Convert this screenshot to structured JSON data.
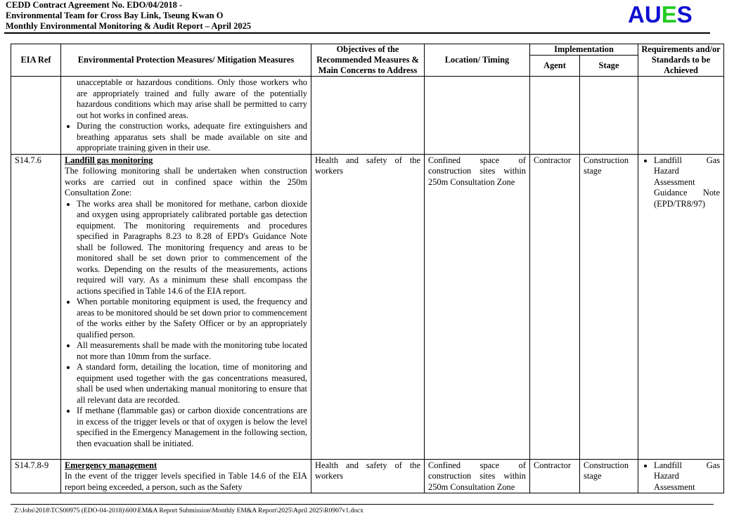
{
  "header": {
    "line1": "CEDD Contract Agreement No. EDO/04/2018 -",
    "line2": "Environmental Team for Cross Bay Link, Tseung Kwan O",
    "line3": "Monthly Environmental Monitoring & Audit Report – April 2025",
    "logo": {
      "letters": [
        "A",
        "U",
        "E",
        "S"
      ],
      "colors": [
        "#1010d0",
        "#1010d0",
        "#22cc22",
        "#1010d0"
      ]
    }
  },
  "table": {
    "columns": {
      "eia_ref": "EIA Ref",
      "measures": "Environmental Protection Measures/ Mitigation Measures",
      "objectives": "Objectives of the Recommended Measures & Main Concerns to Address",
      "location": "Location/ Timing",
      "implementation": "Implementation",
      "agent": "Agent",
      "stage": "Stage",
      "requirements": "Requirements and/or Standards to be Achieved"
    },
    "rows": [
      {
        "ref": "",
        "title": "",
        "intro": "unacceptable or hazardous conditions. Only those workers who are appropriately trained and fully aware of the potentially hazardous conditions which may arise shall be permitted to carry out hot works in confined areas.",
        "bullets": [
          "During the construction works, adequate fire extinguishers and breathing apparatus sets shall be made available on site and appropriate training given in their use."
        ],
        "objectives": "",
        "location": "",
        "agent": "",
        "stage": "",
        "requirements": ""
      },
      {
        "ref": "S14.7.6",
        "title": "Landfill gas monitoring",
        "intro": "The following monitoring shall be undertaken when construction works are carried out in confined space within the 250m Consultation Zone:",
        "bullets": [
          "The works area shall be monitored for methane, carbon dioxide and oxygen using appropriately calibrated portable gas detection equipment. The monitoring requirements and procedures specified in Paragraphs 8.23 to 8.28 of EPD's Guidance Note shall be followed. The monitoring frequency and areas to be monitored shall be set down prior to commencement of the works. Depending on the results of the measurements, actions required will vary. As a minimum these shall encompass the actions specified in Table 14.6 of the EIA report.",
          "When portable monitoring equipment is used, the frequency and areas to be monitored should be set down prior to commencement of the works either by the Safety Officer or by an appropriately qualified person.",
          "All measurements shall be made with the monitoring tube located not more than 10mm from the surface.",
          "A standard form, detailing the location, time of monitoring and equipment used together with the gas concentrations measured, shall be used when undertaking manual monitoring to ensure that all relevant data are recorded.",
          "If methane (flammable gas) or carbon dioxide concentrations are in excess of the trigger levels or that of oxygen is below the level specified in the Emergency Management in the following section, then evacuation shall be initiated."
        ],
        "objectives": "Health and safety of the workers",
        "location": "Confined space of construction sites within 250m Consultation Zone",
        "agent": "Contractor",
        "stage": "Construction stage",
        "requirements": "Landfill Gas Hazard Assessment Guidance Note (EPD/TR8/97)"
      },
      {
        "ref": "S14.7.8-9",
        "title": "Emergency management",
        "intro": "In the event of the trigger levels specified in Table 14.6 of the EIA report being exceeded, a person, such as the Safety",
        "bullets": [],
        "objectives": "Health and safety of the workers",
        "location": "Confined space of construction sites within 250m Consultation Zone",
        "agent": "Contractor",
        "stage": "Construction stage",
        "requirements": "Landfill Gas Hazard Assessment"
      }
    ]
  },
  "footer": {
    "path": "Z:\\Jobs\\2018\\TCS00975 (EDO-04-2018)\\600\\EM&A Report Submission\\Monthly EM&A Report\\2025\\April 2025\\R0907v1.docx"
  }
}
